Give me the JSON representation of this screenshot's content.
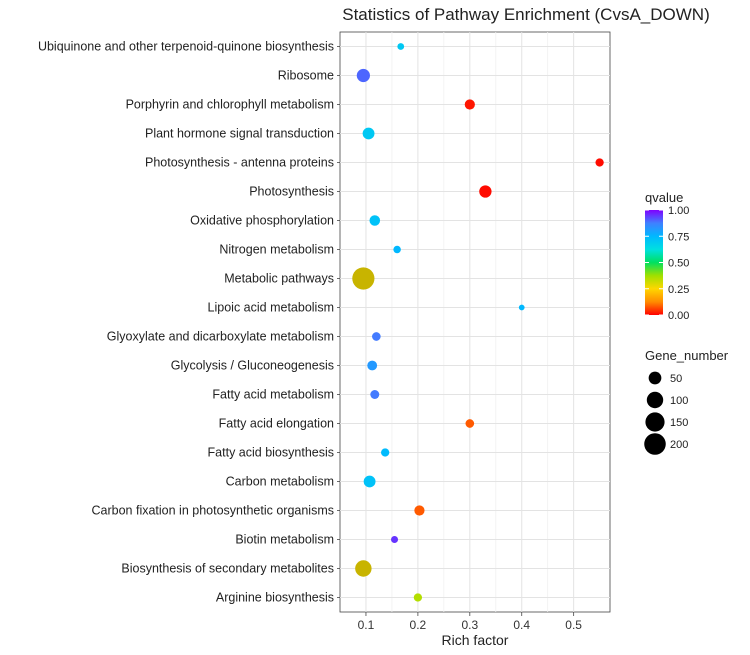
{
  "chart_data": {
    "type": "scatter",
    "title": "Statistics of Pathway Enrichment (CvsA_DOWN)",
    "xlabel": "Rich factor",
    "ylabel": "",
    "xlim": [
      0.05,
      0.57
    ],
    "xticks": [
      "0.1",
      "0.2",
      "0.3",
      "0.4",
      "0.5"
    ],
    "xtick_values": [
      0.1,
      0.2,
      0.3,
      0.4,
      0.5
    ],
    "grid": true,
    "points": [
      {
        "pathway": "Ubiquinone and other terpenoid-quinone biosynthesis",
        "rich_factor": 0.167,
        "qvalue": 0.7,
        "gene_number": 5
      },
      {
        "pathway": "Ribosome",
        "rich_factor": 0.095,
        "qvalue": 0.9,
        "gene_number": 55
      },
      {
        "pathway": "Porphyrin and chlorophyll metabolism",
        "rich_factor": 0.3,
        "qvalue": 0.02,
        "gene_number": 25
      },
      {
        "pathway": "Plant hormone signal transduction",
        "rich_factor": 0.105,
        "qvalue": 0.7,
        "gene_number": 40
      },
      {
        "pathway": "Photosynthesis - antenna proteins",
        "rich_factor": 0.55,
        "qvalue": 0.01,
        "gene_number": 12
      },
      {
        "pathway": "Photosynthesis",
        "rich_factor": 0.33,
        "qvalue": 0.01,
        "gene_number": 45
      },
      {
        "pathway": "Oxidative phosphorylation",
        "rich_factor": 0.117,
        "qvalue": 0.72,
        "gene_number": 28
      },
      {
        "pathway": "Nitrogen metabolism",
        "rich_factor": 0.16,
        "qvalue": 0.75,
        "gene_number": 8
      },
      {
        "pathway": "Metabolic pathways",
        "rich_factor": 0.095,
        "qvalue": 0.18,
        "gene_number": 215
      },
      {
        "pathway": "Lipoic acid metabolism",
        "rich_factor": 0.4,
        "qvalue": 0.75,
        "gene_number": 2
      },
      {
        "pathway": "Glyoxylate and dicarboxylate metabolism",
        "rich_factor": 0.12,
        "qvalue": 0.88,
        "gene_number": 14
      },
      {
        "pathway": "Glycolysis / Gluconeogenesis",
        "rich_factor": 0.112,
        "qvalue": 0.82,
        "gene_number": 22
      },
      {
        "pathway": "Fatty acid metabolism",
        "rich_factor": 0.117,
        "qvalue": 0.88,
        "gene_number": 16
      },
      {
        "pathway": "Fatty acid elongation",
        "rich_factor": 0.3,
        "qvalue": 0.08,
        "gene_number": 14
      },
      {
        "pathway": "Fatty acid biosynthesis",
        "rich_factor": 0.137,
        "qvalue": 0.74,
        "gene_number": 12
      },
      {
        "pathway": "Carbon metabolism",
        "rich_factor": 0.107,
        "qvalue": 0.72,
        "gene_number": 40
      },
      {
        "pathway": "Carbon fixation in photosynthetic organisms",
        "rich_factor": 0.203,
        "qvalue": 0.08,
        "gene_number": 25
      },
      {
        "pathway": "Biotin metabolism",
        "rich_factor": 0.155,
        "qvalue": 0.95,
        "gene_number": 6
      },
      {
        "pathway": "Biosynthesis of secondary metabolites",
        "rich_factor": 0.095,
        "qvalue": 0.18,
        "gene_number": 100
      },
      {
        "pathway": "Arginine biosynthesis",
        "rich_factor": 0.2,
        "qvalue": 0.35,
        "gene_number": 12
      }
    ],
    "color_legend": {
      "title": "qvalue",
      "range": [
        0,
        1
      ],
      "ticks": [
        "0.00",
        "0.25",
        "0.50",
        "0.75",
        "1.00"
      ],
      "tick_values": [
        0,
        0.25,
        0.5,
        0.75,
        1.0
      ],
      "colors": [
        "#ff0000",
        "#ff8c00",
        "#ffd700",
        "#a0e000",
        "#00e060",
        "#00e0e0",
        "#00b8ff",
        "#4080ff",
        "#8000ff"
      ]
    },
    "size_legend": {
      "title": "Gene_number",
      "labels": [
        "50",
        "100",
        "150",
        "200"
      ],
      "values": [
        50,
        100,
        150,
        200
      ]
    },
    "special_colors": {
      "Metabolic pathways": "#c8b400",
      "Biosynthesis of secondary metabolites": "#c8b400"
    }
  }
}
